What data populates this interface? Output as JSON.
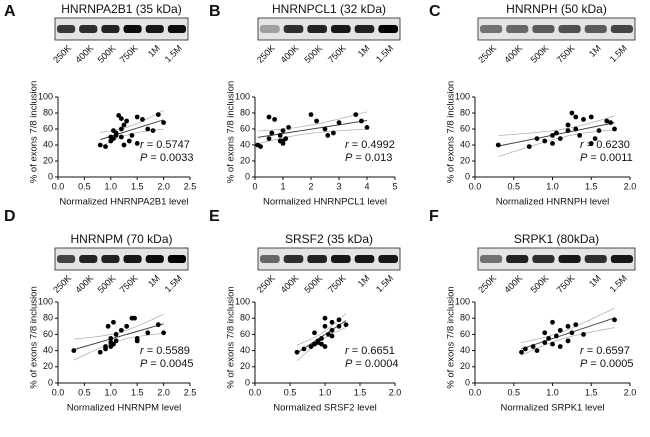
{
  "chart_data": [
    {
      "type": "scatter",
      "panel_label": "A",
      "title": "HNRNPA2B1 (35 kDa)",
      "lanes": [
        "250K",
        "400K",
        "500K",
        "750K",
        "1M",
        "1.5M"
      ],
      "xlabel": "Normalized HNRNPA2B1 level",
      "ylabel": "% of exons 7/8 inclusion",
      "color": "#000000",
      "x": [
        0.8,
        0.9,
        1.0,
        1.0,
        1.05,
        1.1,
        1.1,
        1.2,
        1.2,
        1.25,
        1.3,
        1.35,
        1.4,
        1.5,
        1.5,
        1.6,
        1.7,
        1.8,
        1.9,
        2.0,
        1.15,
        1.2,
        1.05,
        1.25
      ],
      "y": [
        40,
        38,
        45,
        50,
        48,
        52,
        55,
        50,
        60,
        65,
        70,
        45,
        52,
        75,
        42,
        72,
        60,
        58,
        78,
        68,
        77,
        73,
        58,
        40
      ],
      "xlim": [
        0,
        2.5
      ],
      "ylim": [
        0,
        100
      ],
      "xticks": [
        {
          "value": 0,
          "label": "0.0"
        },
        0.5,
        {
          "value": 1,
          "label": "1.0"
        },
        1.5,
        {
          "value": 2,
          "label": "2.0"
        },
        2.5
      ],
      "yticks": [
        0,
        20,
        40,
        60,
        80,
        100
      ],
      "annotations": [
        {
          "symbol": "r",
          "text": "= 0.5747"
        },
        {
          "symbol": "P",
          "text": "= 0.0033"
        }
      ]
    },
    {
      "type": "scatter",
      "panel_label": "B",
      "title": "HNRNPCL1 (32 kDa)",
      "lanes": [
        "250K",
        "400K",
        "500K",
        "750K",
        "1M",
        "1.5M"
      ],
      "xlabel": "Normalized HNRNPCL1 level",
      "ylabel": "% of exons 7/8 inclusion",
      "color": "#000000",
      "x": [
        0.1,
        0.2,
        0.5,
        0.5,
        0.6,
        0.7,
        0.9,
        0.9,
        1.0,
        1.0,
        1.1,
        1.2,
        2.0,
        2.2,
        2.5,
        2.6,
        2.8,
        3.0,
        3.6,
        3.8,
        4.0,
        1.0
      ],
      "y": [
        40,
        38,
        48,
        75,
        55,
        72,
        52,
        45,
        42,
        58,
        48,
        62,
        78,
        70,
        60,
        52,
        55,
        68,
        78,
        70,
        62,
        45
      ],
      "xlim": [
        0,
        5
      ],
      "ylim": [
        0,
        100
      ],
      "xticks": [
        0,
        1,
        2,
        3,
        4,
        5
      ],
      "yticks": [
        0,
        20,
        40,
        60,
        80,
        100
      ],
      "annotations": [
        {
          "symbol": "r",
          "text": "= 0.4992"
        },
        {
          "symbol": "P",
          "text": "= 0.013"
        }
      ]
    },
    {
      "type": "scatter",
      "panel_label": "C",
      "title": "HNRNPH (50 kDa)",
      "lanes": [
        "250K",
        "400K",
        "500K",
        "750K",
        "1M",
        "1.5M"
      ],
      "xlabel": "Normalized HNRNPH level",
      "ylabel": "% of exons 7/8 inclusion",
      "color": "#000000",
      "x": [
        0.3,
        0.7,
        0.8,
        0.9,
        1.0,
        1.0,
        1.05,
        1.1,
        1.2,
        1.2,
        1.3,
        1.3,
        1.35,
        1.4,
        1.5,
        1.55,
        1.6,
        1.7,
        1.75,
        1.8,
        1.5,
        1.25
      ],
      "y": [
        40,
        38,
        48,
        45,
        42,
        52,
        55,
        48,
        65,
        58,
        60,
        75,
        52,
        72,
        75,
        48,
        58,
        70,
        68,
        60,
        42,
        80
      ],
      "xlim": [
        0,
        2
      ],
      "ylim": [
        0,
        100
      ],
      "xticks": [
        {
          "value": 0,
          "label": "0.0"
        },
        0.5,
        {
          "value": 1,
          "label": "1.0"
        },
        1.5,
        {
          "value": 2,
          "label": "2.0"
        }
      ],
      "yticks": [
        0,
        20,
        40,
        60,
        80,
        100
      ],
      "annotations": [
        {
          "symbol": "r",
          "text": "= 0.6230"
        },
        {
          "symbol": "P",
          "text": "= 0.0011"
        }
      ]
    },
    {
      "type": "scatter",
      "panel_label": "D",
      "title": "HNRNPM (70 kDa)",
      "lanes": [
        "250K",
        "400K",
        "500K",
        "750K",
        "1M",
        "1.5M"
      ],
      "xlabel": "Normalized HNRNPM level",
      "ylabel": "% of exons 7/8 inclusion",
      "color": "#000000",
      "x": [
        0.3,
        0.8,
        0.9,
        1.0,
        1.0,
        1.0,
        1.05,
        1.1,
        0.95,
        1.05,
        1.2,
        1.3,
        1.4,
        1.45,
        1.5,
        1.5,
        1.7,
        1.9,
        2.0,
        1.1,
        0.9
      ],
      "y": [
        40,
        38,
        42,
        45,
        50,
        55,
        48,
        60,
        70,
        75,
        65,
        70,
        80,
        80,
        55,
        52,
        62,
        72,
        62,
        52,
        45
      ],
      "xlim": [
        0,
        2.5
      ],
      "ylim": [
        0,
        100
      ],
      "xticks": [
        {
          "value": 0,
          "label": "0.0"
        },
        0.5,
        {
          "value": 1,
          "label": "1.0"
        },
        1.5,
        {
          "value": 2,
          "label": "2.0"
        },
        2.5
      ],
      "yticks": [
        0,
        20,
        40,
        60,
        80,
        100
      ],
      "annotations": [
        {
          "symbol": "r",
          "text": "= 0.5589"
        },
        {
          "symbol": "P",
          "text": "= 0.0045"
        }
      ]
    },
    {
      "type": "scatter",
      "panel_label": "E",
      "title": "SRSF2 (35 kDa)",
      "lanes": [
        "250K",
        "400K",
        "500K",
        "750K",
        "1M",
        "1.5M"
      ],
      "xlabel": "Normalized SRSF2 level",
      "ylabel": "% of exons 7/8 inclusion",
      "color": "#000000",
      "x": [
        0.6,
        0.7,
        0.8,
        0.85,
        0.9,
        0.9,
        0.95,
        1.0,
        1.0,
        1.0,
        1.05,
        1.1,
        1.1,
        1.2,
        1.2,
        0.95,
        1.3,
        1.1,
        0.85
      ],
      "y": [
        38,
        42,
        45,
        48,
        50,
        52,
        55,
        45,
        70,
        80,
        60,
        65,
        75,
        78,
        70,
        48,
        72,
        58,
        62
      ],
      "xlim": [
        0,
        2
      ],
      "ylim": [
        0,
        100
      ],
      "xticks": [
        {
          "value": 0,
          "label": "0.0"
        },
        0.5,
        {
          "value": 1,
          "label": "1.0"
        },
        1.5,
        {
          "value": 2,
          "label": "2.0"
        }
      ],
      "yticks": [
        0,
        20,
        40,
        60,
        80,
        100
      ],
      "annotations": [
        {
          "symbol": "r",
          "text": "= 0.6651"
        },
        {
          "symbol": "P",
          "text": "= 0.0004"
        }
      ]
    },
    {
      "type": "scatter",
      "panel_label": "F",
      "title": "SRPK1 (80kDa)",
      "lanes": [
        "250K",
        "400K",
        "500K",
        "750K",
        "1M",
        "1.5M"
      ],
      "xlabel": "Normalized SRPK1 level",
      "ylabel": "% of exons 7/8 inclusion",
      "color": "#000000",
      "x": [
        0.6,
        0.65,
        0.75,
        0.8,
        0.9,
        0.95,
        1.0,
        1.0,
        1.05,
        1.1,
        1.1,
        1.2,
        1.2,
        1.25,
        1.3,
        1.4,
        1.8,
        0.9
      ],
      "y": [
        38,
        42,
        45,
        40,
        50,
        55,
        48,
        75,
        58,
        65,
        45,
        70,
        52,
        62,
        72,
        60,
        78,
        62
      ],
      "xlim": [
        0,
        2
      ],
      "ylim": [
        0,
        100
      ],
      "xticks": [
        {
          "value": 0,
          "label": "0.0"
        },
        0.5,
        {
          "value": 1,
          "label": "1.0"
        },
        1.5,
        {
          "value": 2,
          "label": "2.0"
        }
      ],
      "yticks": [
        0,
        20,
        40,
        60,
        80,
        100
      ],
      "annotations": [
        {
          "symbol": "r",
          "text": "= 0.6597"
        },
        {
          "symbol": "P",
          "text": "= 0.0005"
        }
      ]
    }
  ]
}
